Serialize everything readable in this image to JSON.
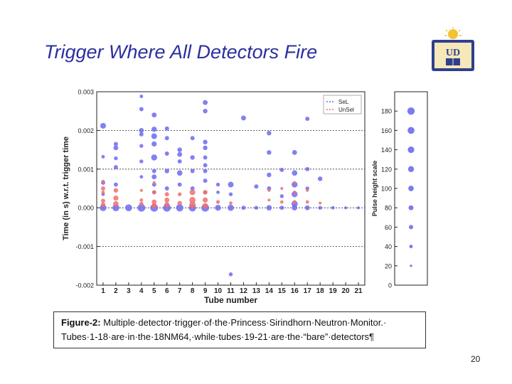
{
  "slide": {
    "title": "Trigger Where All Detectors Fire",
    "page_number": "20",
    "logo_text": "UNIVERSITY OF DELAWARE"
  },
  "caption": {
    "label": "Figure-2:",
    "line1_rest": " Multiple·detector·trigger·of·the·Princess·Sirindhorn·Neutron·Monitor.·",
    "line2": "Tubes·1-18·are·in·the·18NM64,·while·tubes·19-21·are·the·“bare”·detectors¶"
  },
  "colors": {
    "sel": "#6b6bf0",
    "unsel": "#f07070",
    "title": "#2b2f9e"
  },
  "chart_data": [
    {
      "type": "scatter",
      "xlabel": "Tube number",
      "ylabel": "Time (in s) w.r.t. trigger time",
      "xlim": [
        0.5,
        21.5
      ],
      "ylim": [
        -0.002,
        0.003
      ],
      "x_ticks": [
        "1",
        "2",
        "3",
        "4",
        "5",
        "6",
        "7",
        "8",
        "9",
        "10",
        "11",
        "12",
        "13",
        "14",
        "15",
        "16",
        "17",
        "18",
        "19",
        "20",
        "21"
      ],
      "y_ticks": [
        -0.002,
        -0.001,
        0.0,
        0.001,
        0.002,
        0.003
      ],
      "y_tick_labels": [
        "-0.002",
        "-0.001",
        "0.000",
        "0.001",
        "0.002",
        "0.003"
      ],
      "legend_position": "top-right",
      "grid": "horizontal dashed",
      "series": [
        {
          "name": "SeL",
          "color": "#6b6bf0",
          "points": [
            {
              "x": 1,
              "y": 0.00212,
              "s": 110
            },
            {
              "x": 1,
              "y": 0.00132,
              "s": 40
            },
            {
              "x": 1,
              "y": 0.00065,
              "s": 60
            },
            {
              "x": 1,
              "y": 0.00035,
              "s": 40
            },
            {
              "x": 1,
              "y": 0.0,
              "s": 150
            },
            {
              "x": 2,
              "y": 0.00165,
              "s": 60
            },
            {
              "x": 2,
              "y": 0.00155,
              "s": 80
            },
            {
              "x": 2,
              "y": 0.00128,
              "s": 50
            },
            {
              "x": 2,
              "y": 0.00105,
              "s": 60
            },
            {
              "x": 2,
              "y": 0.0006,
              "s": 60
            },
            {
              "x": 2,
              "y": 0.0,
              "s": 160
            },
            {
              "x": 3,
              "y": 0.0,
              "s": 160
            },
            {
              "x": 4,
              "y": 0.00288,
              "s": 40
            },
            {
              "x": 4,
              "y": 0.00255,
              "s": 60
            },
            {
              "x": 4,
              "y": 0.002,
              "s": 80
            },
            {
              "x": 4,
              "y": 0.0019,
              "s": 60
            },
            {
              "x": 4,
              "y": 0.0016,
              "s": 50
            },
            {
              "x": 4,
              "y": 0.0012,
              "s": 50
            },
            {
              "x": 4,
              "y": 0.0008,
              "s": 40
            },
            {
              "x": 4,
              "y": 0.0,
              "s": 200
            },
            {
              "x": 5,
              "y": 0.0024,
              "s": 80
            },
            {
              "x": 5,
              "y": 0.00203,
              "s": 90
            },
            {
              "x": 5,
              "y": 0.00185,
              "s": 110
            },
            {
              "x": 5,
              "y": 0.00165,
              "s": 90
            },
            {
              "x": 5,
              "y": 0.0013,
              "s": 120
            },
            {
              "x": 5,
              "y": 0.00095,
              "s": 60
            },
            {
              "x": 5,
              "y": 0.0008,
              "s": 80
            },
            {
              "x": 5,
              "y": 0.0006,
              "s": 60
            },
            {
              "x": 5,
              "y": 0.0004,
              "s": 60
            },
            {
              "x": 5,
              "y": 0.0,
              "s": 200
            },
            {
              "x": 6,
              "y": 0.00205,
              "s": 60
            },
            {
              "x": 6,
              "y": 0.0018,
              "s": 60
            },
            {
              "x": 6,
              "y": 0.0014,
              "s": 60
            },
            {
              "x": 6,
              "y": 0.00095,
              "s": 70
            },
            {
              "x": 6,
              "y": 0.0005,
              "s": 60
            },
            {
              "x": 6,
              "y": 0.0,
              "s": 200
            },
            {
              "x": 7,
              "y": 0.0015,
              "s": 70
            },
            {
              "x": 7,
              "y": 0.00138,
              "s": 80
            },
            {
              "x": 7,
              "y": 0.0012,
              "s": 60
            },
            {
              "x": 7,
              "y": 0.0009,
              "s": 100
            },
            {
              "x": 7,
              "y": 0.0006,
              "s": 60
            },
            {
              "x": 7,
              "y": 0.0,
              "s": 180
            },
            {
              "x": 8,
              "y": 0.0018,
              "s": 60
            },
            {
              "x": 8,
              "y": 0.0013,
              "s": 70
            },
            {
              "x": 8,
              "y": 0.00095,
              "s": 60
            },
            {
              "x": 8,
              "y": 0.0005,
              "s": 60
            },
            {
              "x": 8,
              "y": 0.0,
              "s": 180
            },
            {
              "x": 9,
              "y": 0.00272,
              "s": 80
            },
            {
              "x": 9,
              "y": 0.0025,
              "s": 70
            },
            {
              "x": 9,
              "y": 0.0017,
              "s": 70
            },
            {
              "x": 9,
              "y": 0.00155,
              "s": 70
            },
            {
              "x": 9,
              "y": 0.0013,
              "s": 60
            },
            {
              "x": 9,
              "y": 0.0011,
              "s": 60
            },
            {
              "x": 9,
              "y": 0.00095,
              "s": 60
            },
            {
              "x": 9,
              "y": 0.0007,
              "s": 60
            },
            {
              "x": 9,
              "y": 0.0004,
              "s": 50
            },
            {
              "x": 9,
              "y": 0.0,
              "s": 200
            },
            {
              "x": 10,
              "y": 0.0006,
              "s": 50
            },
            {
              "x": 10,
              "y": 0.0004,
              "s": 40
            },
            {
              "x": 10,
              "y": 0.0,
              "s": 120
            },
            {
              "x": 11,
              "y": 0.0006,
              "s": 110
            },
            {
              "x": 11,
              "y": 0.00035,
              "s": 50
            },
            {
              "x": 11,
              "y": 0.0,
              "s": 130
            },
            {
              "x": 11,
              "y": -0.00172,
              "s": 50
            },
            {
              "x": 12,
              "y": 0.00232,
              "s": 80
            },
            {
              "x": 12,
              "y": 0.0,
              "s": 60
            },
            {
              "x": 13,
              "y": 0.00055,
              "s": 60
            },
            {
              "x": 13,
              "y": 0.0,
              "s": 50
            },
            {
              "x": 14,
              "y": 0.00193,
              "s": 70
            },
            {
              "x": 14,
              "y": 0.00143,
              "s": 70
            },
            {
              "x": 14,
              "y": 0.00085,
              "s": 70
            },
            {
              "x": 14,
              "y": 0.0005,
              "s": 60
            },
            {
              "x": 14,
              "y": 0.0,
              "s": 100
            },
            {
              "x": 15,
              "y": 0.00098,
              "s": 60
            },
            {
              "x": 15,
              "y": 0.0003,
              "s": 50
            },
            {
              "x": 15,
              "y": 0.0,
              "s": 60
            },
            {
              "x": 16,
              "y": 0.00143,
              "s": 80
            },
            {
              "x": 16,
              "y": 0.0009,
              "s": 100
            },
            {
              "x": 16,
              "y": 0.0006,
              "s": 120
            },
            {
              "x": 16,
              "y": 0.00035,
              "s": 120
            },
            {
              "x": 16,
              "y": 0.0001,
              "s": 130
            },
            {
              "x": 16,
              "y": 0.0,
              "s": 100
            },
            {
              "x": 17,
              "y": 0.0023,
              "s": 60
            },
            {
              "x": 17,
              "y": 0.001,
              "s": 60
            },
            {
              "x": 17,
              "y": 0.0005,
              "s": 50
            },
            {
              "x": 17,
              "y": 0.0,
              "s": 80
            },
            {
              "x": 18,
              "y": 0.00075,
              "s": 70
            },
            {
              "x": 18,
              "y": 0.0,
              "s": 50
            },
            {
              "x": 19,
              "y": 0.0,
              "s": 40
            },
            {
              "x": 20,
              "y": 0.0,
              "s": 30
            },
            {
              "x": 21,
              "y": 0.0,
              "s": 30
            }
          ]
        },
        {
          "name": "UnSel",
          "color": "#f07070",
          "points": [
            {
              "x": 1,
              "y": 0.00068,
              "s": 40
            },
            {
              "x": 1,
              "y": 0.0005,
              "s": 60
            },
            {
              "x": 1,
              "y": 0.0004,
              "s": 40
            },
            {
              "x": 1,
              "y": 0.00018,
              "s": 60
            },
            {
              "x": 1,
              "y": 8e-05,
              "s": 70
            },
            {
              "x": 2,
              "y": 0.00045,
              "s": 70
            },
            {
              "x": 2,
              "y": 0.00025,
              "s": 90
            },
            {
              "x": 2,
              "y": 0.0001,
              "s": 100
            },
            {
              "x": 4,
              "y": 0.00045,
              "s": 30
            },
            {
              "x": 4,
              "y": 0.0002,
              "s": 40
            },
            {
              "x": 4,
              "y": 0.0001,
              "s": 60
            },
            {
              "x": 5,
              "y": 0.00065,
              "s": 30
            },
            {
              "x": 5,
              "y": 0.0004,
              "s": 50
            },
            {
              "x": 5,
              "y": 0.00015,
              "s": 80
            },
            {
              "x": 5,
              "y": 5e-05,
              "s": 90
            },
            {
              "x": 6,
              "y": 0.00035,
              "s": 60
            },
            {
              "x": 6,
              "y": 0.0002,
              "s": 80
            },
            {
              "x": 6,
              "y": 8e-05,
              "s": 90
            },
            {
              "x": 7,
              "y": 0.00035,
              "s": 50
            },
            {
              "x": 7,
              "y": 0.00012,
              "s": 70
            },
            {
              "x": 8,
              "y": 0.0004,
              "s": 110
            },
            {
              "x": 8,
              "y": 0.0002,
              "s": 130
            },
            {
              "x": 8,
              "y": 8e-05,
              "s": 140
            },
            {
              "x": 9,
              "y": 0.0004,
              "s": 70
            },
            {
              "x": 9,
              "y": 0.0002,
              "s": 90
            },
            {
              "x": 9,
              "y": 5e-05,
              "s": 100
            },
            {
              "x": 10,
              "y": 0.00015,
              "s": 50
            },
            {
              "x": 11,
              "y": 0.00012,
              "s": 40
            },
            {
              "x": 14,
              "y": 0.00045,
              "s": 30
            },
            {
              "x": 14,
              "y": 0.0002,
              "s": 30
            },
            {
              "x": 15,
              "y": 0.0005,
              "s": 30
            },
            {
              "x": 15,
              "y": 0.00015,
              "s": 40
            },
            {
              "x": 16,
              "y": 0.00065,
              "s": 30
            },
            {
              "x": 16,
              "y": 0.0004,
              "s": 40
            },
            {
              "x": 16,
              "y": 0.00015,
              "s": 50
            },
            {
              "x": 17,
              "y": 0.00045,
              "s": 30
            },
            {
              "x": 17,
              "y": 0.00015,
              "s": 40
            },
            {
              "x": 18,
              "y": 0.00012,
              "s": 30
            }
          ]
        }
      ]
    },
    {
      "type": "scatter",
      "ylabel": "Pulse height scale",
      "ylim": [
        0,
        200
      ],
      "y_ticks": [
        0,
        20,
        40,
        60,
        80,
        100,
        120,
        140,
        160,
        180
      ],
      "series": [
        {
          "color": "#6b6bf0",
          "points": [
            {
              "x": 0,
              "y": 20,
              "s": 20
            },
            {
              "x": 0,
              "y": 40,
              "s": 40
            },
            {
              "x": 0,
              "y": 60,
              "s": 60
            },
            {
              "x": 0,
              "y": 80,
              "s": 80
            },
            {
              "x": 0,
              "y": 100,
              "s": 100
            },
            {
              "x": 0,
              "y": 120,
              "s": 120
            },
            {
              "x": 0,
              "y": 140,
              "s": 140
            },
            {
              "x": 0,
              "y": 160,
              "s": 160
            },
            {
              "x": 0,
              "y": 180,
              "s": 180
            }
          ]
        }
      ]
    }
  ]
}
